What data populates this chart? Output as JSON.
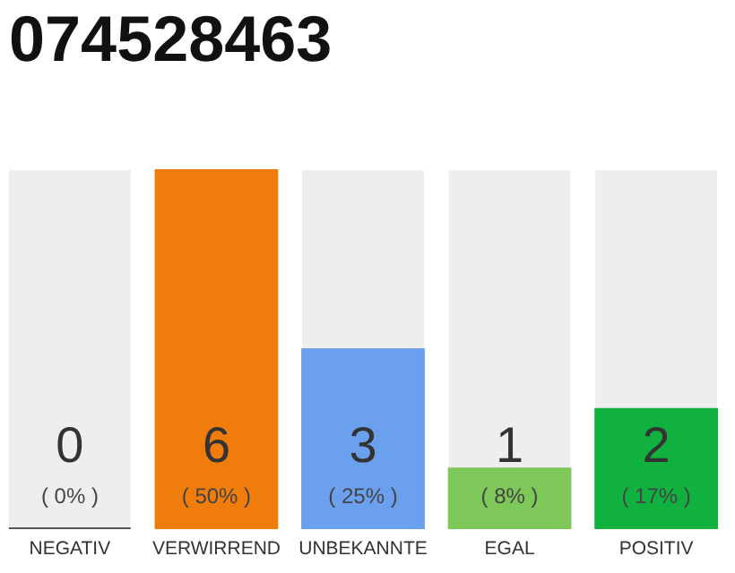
{
  "chart_data": {
    "type": "bar",
    "title": "074528463",
    "categories": [
      "NEGATIV",
      "VERWIRREND",
      "UNBEKANNTE",
      "EGAL",
      "POSITIV"
    ],
    "values": [
      0,
      6,
      3,
      1,
      2
    ],
    "colors": [
      "#555555",
      "#f07c0c",
      "#6aa0ee",
      "#7ec85a",
      "#11b140"
    ],
    "data_labels": true,
    "annotations": [
      "( 0% )",
      "( 50% )",
      "( 25% )",
      "( 8% )",
      "( 17% )"
    ],
    "tick_labels": "x"
  }
}
